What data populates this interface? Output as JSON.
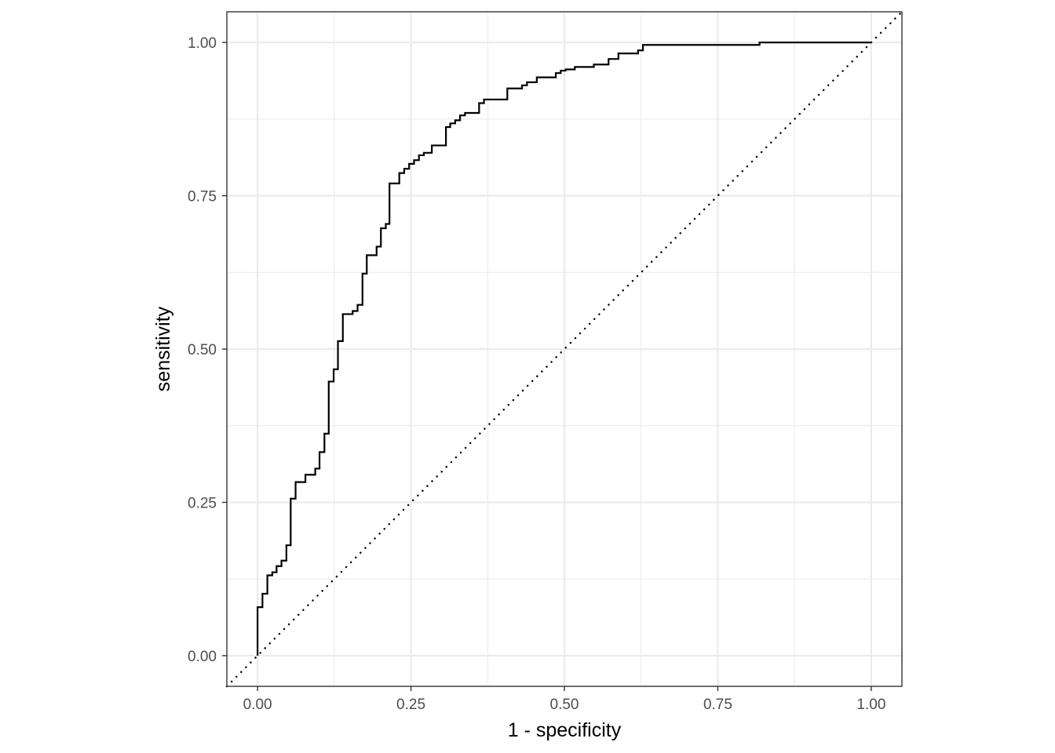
{
  "chart_data": {
    "type": "line",
    "title": "",
    "xlabel": "1 - specificity",
    "ylabel": "sensitivity",
    "xlim": [
      -0.05,
      1.05
    ],
    "ylim": [
      -0.05,
      1.05
    ],
    "x_ticks": [
      0,
      0.25,
      0.5,
      0.75,
      1
    ],
    "y_ticks": [
      0,
      0.25,
      0.5,
      0.75,
      1
    ],
    "x_tick_labels": [
      "0.00",
      "0.25",
      "0.50",
      "0.75",
      "1.00"
    ],
    "y_tick_labels": [
      "0.00",
      "0.25",
      "0.50",
      "0.75",
      "1.00"
    ],
    "grid": true,
    "aspect": "equal",
    "series": [
      {
        "style": "step",
        "color": "#000000",
        "points": [
          [
            0.0,
            0.0
          ],
          [
            0.0,
            0.079
          ],
          [
            0.008,
            0.079
          ],
          [
            0.008,
            0.101
          ],
          [
            0.016,
            0.101
          ],
          [
            0.016,
            0.131
          ],
          [
            0.024,
            0.131
          ],
          [
            0.024,
            0.136
          ],
          [
            0.031,
            0.136
          ],
          [
            0.031,
            0.146
          ],
          [
            0.039,
            0.146
          ],
          [
            0.039,
            0.155
          ],
          [
            0.047,
            0.155
          ],
          [
            0.047,
            0.18
          ],
          [
            0.054,
            0.18
          ],
          [
            0.054,
            0.256
          ],
          [
            0.062,
            0.256
          ],
          [
            0.062,
            0.283
          ],
          [
            0.078,
            0.283
          ],
          [
            0.078,
            0.295
          ],
          [
            0.094,
            0.295
          ],
          [
            0.094,
            0.305
          ],
          [
            0.101,
            0.305
          ],
          [
            0.101,
            0.332
          ],
          [
            0.109,
            0.332
          ],
          [
            0.109,
            0.362
          ],
          [
            0.116,
            0.362
          ],
          [
            0.116,
            0.447
          ],
          [
            0.124,
            0.447
          ],
          [
            0.124,
            0.467
          ],
          [
            0.131,
            0.467
          ],
          [
            0.131,
            0.513
          ],
          [
            0.139,
            0.513
          ],
          [
            0.139,
            0.557
          ],
          [
            0.155,
            0.557
          ],
          [
            0.155,
            0.562
          ],
          [
            0.163,
            0.562
          ],
          [
            0.163,
            0.572
          ],
          [
            0.171,
            0.572
          ],
          [
            0.171,
            0.623
          ],
          [
            0.178,
            0.623
          ],
          [
            0.178,
            0.653
          ],
          [
            0.194,
            0.653
          ],
          [
            0.194,
            0.667
          ],
          [
            0.201,
            0.667
          ],
          [
            0.201,
            0.697
          ],
          [
            0.209,
            0.697
          ],
          [
            0.209,
            0.704
          ],
          [
            0.215,
            0.704
          ],
          [
            0.215,
            0.77
          ],
          [
            0.231,
            0.77
          ],
          [
            0.231,
            0.787
          ],
          [
            0.239,
            0.787
          ],
          [
            0.239,
            0.794
          ],
          [
            0.247,
            0.794
          ],
          [
            0.247,
            0.802
          ],
          [
            0.255,
            0.802
          ],
          [
            0.255,
            0.808
          ],
          [
            0.263,
            0.808
          ],
          [
            0.263,
            0.816
          ],
          [
            0.271,
            0.816
          ],
          [
            0.271,
            0.82
          ],
          [
            0.284,
            0.82
          ],
          [
            0.284,
            0.832
          ],
          [
            0.307,
            0.832
          ],
          [
            0.307,
            0.862
          ],
          [
            0.314,
            0.862
          ],
          [
            0.314,
            0.868
          ],
          [
            0.322,
            0.868
          ],
          [
            0.322,
            0.873
          ],
          [
            0.33,
            0.873
          ],
          [
            0.33,
            0.881
          ],
          [
            0.338,
            0.881
          ],
          [
            0.338,
            0.885
          ],
          [
            0.361,
            0.885
          ],
          [
            0.361,
            0.901
          ],
          [
            0.369,
            0.901
          ],
          [
            0.369,
            0.907
          ],
          [
            0.407,
            0.907
          ],
          [
            0.407,
            0.925
          ],
          [
            0.431,
            0.925
          ],
          [
            0.431,
            0.93
          ],
          [
            0.439,
            0.93
          ],
          [
            0.439,
            0.935
          ],
          [
            0.455,
            0.935
          ],
          [
            0.455,
            0.943
          ],
          [
            0.486,
            0.943
          ],
          [
            0.486,
            0.95
          ],
          [
            0.494,
            0.95
          ],
          [
            0.494,
            0.954
          ],
          [
            0.502,
            0.954
          ],
          [
            0.502,
            0.956
          ],
          [
            0.517,
            0.956
          ],
          [
            0.517,
            0.96
          ],
          [
            0.548,
            0.96
          ],
          [
            0.548,
            0.964
          ],
          [
            0.572,
            0.964
          ],
          [
            0.572,
            0.973
          ],
          [
            0.588,
            0.973
          ],
          [
            0.588,
            0.982
          ],
          [
            0.62,
            0.982
          ],
          [
            0.62,
            0.987
          ],
          [
            0.628,
            0.987
          ],
          [
            0.628,
            0.996
          ],
          [
            0.818,
            0.996
          ],
          [
            0.818,
            1.0
          ],
          [
            1.0,
            1.0
          ]
        ]
      },
      {
        "style": "dotted",
        "color": "#000000",
        "points": [
          [
            -0.05,
            -0.05
          ],
          [
            1.05,
            1.05
          ]
        ]
      }
    ]
  }
}
